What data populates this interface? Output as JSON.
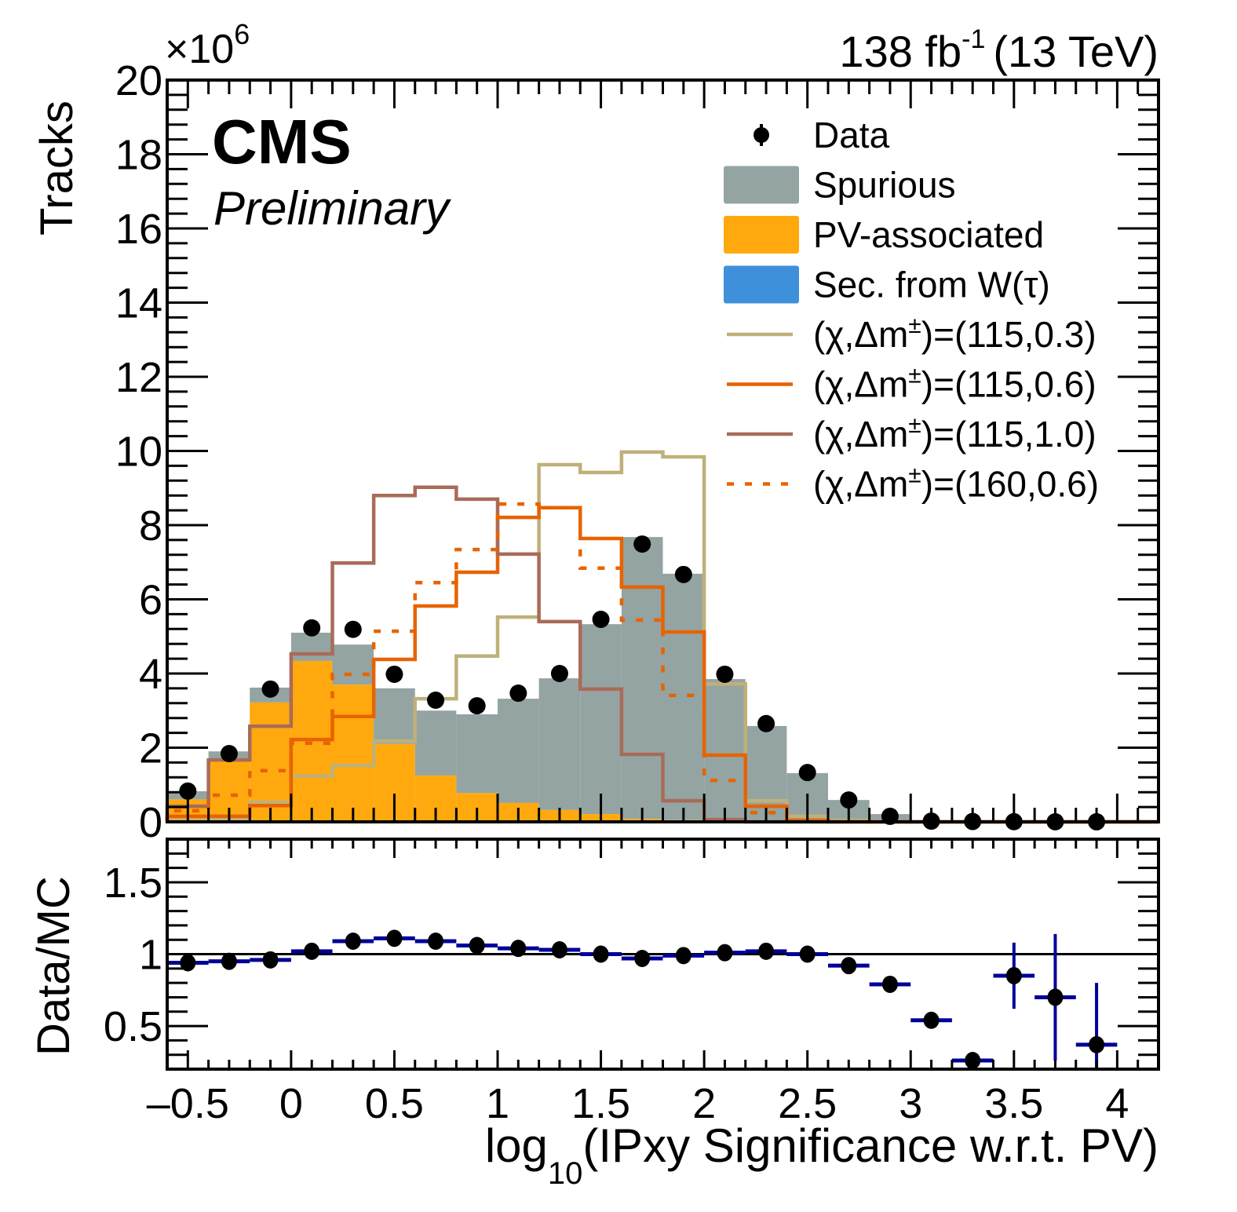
{
  "chart_data": [
    {
      "panel": "main",
      "type": "bar",
      "style": "stacked-histogram-with-overlays",
      "experiment_label": "CMS",
      "experiment_sublabel": "Preliminary",
      "lumi_label": "138 fb",
      "lumi_superscript": "-1",
      "energy_label": "(13 TeV)",
      "ylabel": "Tracks",
      "y_multiplier": "×10",
      "y_multiplier_exp": "6",
      "ylim": [
        0,
        20
      ],
      "y_unit_scale": 1000000,
      "yticks": [
        "0",
        "2",
        "4",
        "6",
        "8",
        "10",
        "12",
        "14",
        "16",
        "18",
        "20"
      ],
      "xlim": [
        -0.6,
        4.2
      ],
      "bin_edges": [
        -0.6,
        -0.4,
        -0.2,
        0.0,
        0.2,
        0.4,
        0.6,
        0.8,
        1.0,
        1.2,
        1.4,
        1.6,
        1.8,
        2.0,
        2.2,
        2.4,
        2.6,
        2.8,
        3.0,
        3.2,
        3.4,
        3.6,
        3.8,
        4.0,
        4.2
      ],
      "legend_position": "top-right",
      "stacked_series": [
        {
          "name": "Sec. from W(τ)",
          "color": "#3f90da",
          "values": [
            0.005,
            0.01,
            0.01,
            0.01,
            0.01,
            0.01,
            0.01,
            0.01,
            0.01,
            0.01,
            0.01,
            0.01,
            0.01,
            0.01,
            0.005,
            0.005,
            0.0,
            0.0,
            0.0,
            0.0,
            0.0,
            0.0,
            0.0,
            0.0
          ]
        },
        {
          "name": "PV-associated",
          "color": "#ffa90e",
          "values": [
            0.6,
            1.7,
            3.21,
            4.33,
            3.69,
            2.09,
            1.24,
            0.77,
            0.5,
            0.31,
            0.2,
            0.07,
            0.04,
            0.03,
            0.02,
            0.01,
            0.0,
            0.0,
            0.0,
            0.0,
            0.0,
            0.0,
            0.0,
            0.0
          ]
        },
        {
          "name": "Spurious",
          "color": "#94a4a2",
          "values": [
            0.22,
            0.19,
            0.4,
            0.76,
            1.08,
            1.5,
            1.75,
            2.12,
            2.81,
            3.55,
            5.12,
            7.6,
            6.64,
            3.81,
            2.56,
            1.3,
            0.59,
            0.21,
            0.03,
            0.0,
            0.0,
            0.0,
            0.0,
            0.0
          ]
        }
      ],
      "signal_series": [
        {
          "name": "(χ,Δm±)=(115,0.3)",
          "color": "#bfb07a",
          "dashed": false,
          "values": [
            0.04,
            0.08,
            0.53,
            1.23,
            1.52,
            2.18,
            3.32,
            4.47,
            5.52,
            9.63,
            9.42,
            9.97,
            9.84,
            3.72,
            0.57,
            0.15,
            0.04,
            0.0,
            0.0,
            0.0,
            0.0,
            0.0,
            0.0,
            0.0
          ]
        },
        {
          "name": "(χ,Δm±)=(115,0.6)",
          "color": "#e76300",
          "dashed": false,
          "values": [
            0.15,
            0.15,
            0.44,
            2.22,
            2.84,
            4.38,
            5.82,
            6.73,
            8.21,
            8.47,
            7.64,
            6.33,
            5.12,
            1.8,
            0.42,
            0.04,
            0.0,
            0.0,
            0.0,
            0.0,
            0.0,
            0.0,
            0.0,
            0.0
          ]
        },
        {
          "name": "(χ,Δm±)=(115,1.0)",
          "color": "#a96b59",
          "dashed": false,
          "values": [
            0.42,
            1.67,
            2.58,
            4.53,
            6.98,
            8.8,
            9.02,
            8.7,
            7.22,
            5.4,
            3.58,
            1.82,
            0.57,
            0.06,
            0.0,
            0.0,
            0.0,
            0.0,
            0.0,
            0.0,
            0.0,
            0.0,
            0.0,
            0.0
          ]
        },
        {
          "name": "(χ,Δm±)=(160,0.6)",
          "color": "#e76300",
          "dashed": true,
          "values": [
            0.3,
            0.72,
            1.38,
            2.12,
            3.98,
            5.14,
            6.45,
            7.34,
            8.57,
            8.47,
            6.84,
            5.44,
            3.41,
            1.12,
            0.25,
            0.03,
            0.0,
            0.0,
            0.0,
            0.0,
            0.0,
            0.0,
            0.0,
            0.0
          ]
        }
      ],
      "data_series": {
        "name": "Data",
        "color": "#000000",
        "x": [
          -0.5,
          -0.3,
          -0.1,
          0.1,
          0.3,
          0.5,
          0.7,
          0.9,
          1.1,
          1.3,
          1.5,
          1.7,
          1.9,
          2.1,
          2.3,
          2.5,
          2.7,
          2.9,
          3.1,
          3.3,
          3.5,
          3.7,
          3.9
        ],
        "y": [
          0.83,
          1.84,
          3.58,
          5.23,
          5.19,
          3.98,
          3.28,
          3.13,
          3.47,
          4.0,
          5.46,
          7.49,
          6.67,
          3.98,
          2.65,
          1.33,
          0.59,
          0.15,
          0.02,
          0.01,
          0.005,
          0.003,
          0.002
        ]
      },
      "legend": [
        {
          "label": "Data",
          "kind": "marker",
          "color": "#000000"
        },
        {
          "label": "Spurious",
          "kind": "fill",
          "color": "#94a4a2"
        },
        {
          "label": "PV-associated",
          "kind": "fill",
          "color": "#ffa90e"
        },
        {
          "label": "Sec. from W(τ)",
          "kind": "fill",
          "color": "#3f90da"
        },
        {
          "label_prefix": "(χ,Δm",
          "label_sup": "±",
          "label_suffix": ")=(115,0.3)",
          "kind": "line",
          "color": "#bfb07a",
          "dashed": false
        },
        {
          "label_prefix": "(χ,Δm",
          "label_sup": "±",
          "label_suffix": ")=(115,0.6)",
          "kind": "line",
          "color": "#e76300",
          "dashed": false
        },
        {
          "label_prefix": "(χ,Δm",
          "label_sup": "±",
          "label_suffix": ")=(115,1.0)",
          "kind": "line",
          "color": "#a96b59",
          "dashed": false
        },
        {
          "label_prefix": "(χ,Δm",
          "label_sup": "±",
          "label_suffix": ")=(160,0.6)",
          "kind": "line",
          "color": "#e76300",
          "dashed": true
        }
      ]
    },
    {
      "panel": "ratio",
      "type": "scatter",
      "ylabel": "Data/MC",
      "ylim": [
        0.2,
        1.8
      ],
      "yticks": [
        "0.5",
        "1",
        "1.5"
      ],
      "ytick_values": [
        0.5,
        1.0,
        1.5
      ],
      "reference_line": 1.0,
      "xlabel_main": "log",
      "xlabel_sub": "10",
      "xlabel_rest": "(IPxy Significance w.r.t. PV)",
      "xlim": [
        -0.6,
        4.2
      ],
      "xticks": [
        "–0.5",
        "0",
        "0.5",
        "1",
        "1.5",
        "2",
        "2.5",
        "3",
        "3.5",
        "4"
      ],
      "xtick_values": [
        -0.5,
        0,
        0.5,
        1,
        1.5,
        2,
        2.5,
        3,
        3.5,
        4
      ],
      "errorbar_color": "#000099",
      "x": [
        -0.5,
        -0.3,
        -0.1,
        0.1,
        0.3,
        0.5,
        0.7,
        0.9,
        1.1,
        1.3,
        1.5,
        1.7,
        1.9,
        2.1,
        2.3,
        2.5,
        2.7,
        2.9,
        3.1,
        3.3,
        3.5,
        3.7,
        3.9
      ],
      "y": [
        0.94,
        0.95,
        0.96,
        1.02,
        1.09,
        1.11,
        1.09,
        1.06,
        1.04,
        1.03,
        1.0,
        0.97,
        0.99,
        1.01,
        1.02,
        1.0,
        0.92,
        0.79,
        0.54,
        0.26,
        0.85,
        0.7,
        0.37
      ],
      "y_err": [
        0.005,
        0.005,
        0.005,
        0.005,
        0.005,
        0.005,
        0.005,
        0.005,
        0.005,
        0.005,
        0.005,
        0.005,
        0.005,
        0.005,
        0.005,
        0.01,
        0.01,
        0.01,
        0.02,
        0.03,
        0.23,
        0.44,
        0.43
      ]
    }
  ]
}
